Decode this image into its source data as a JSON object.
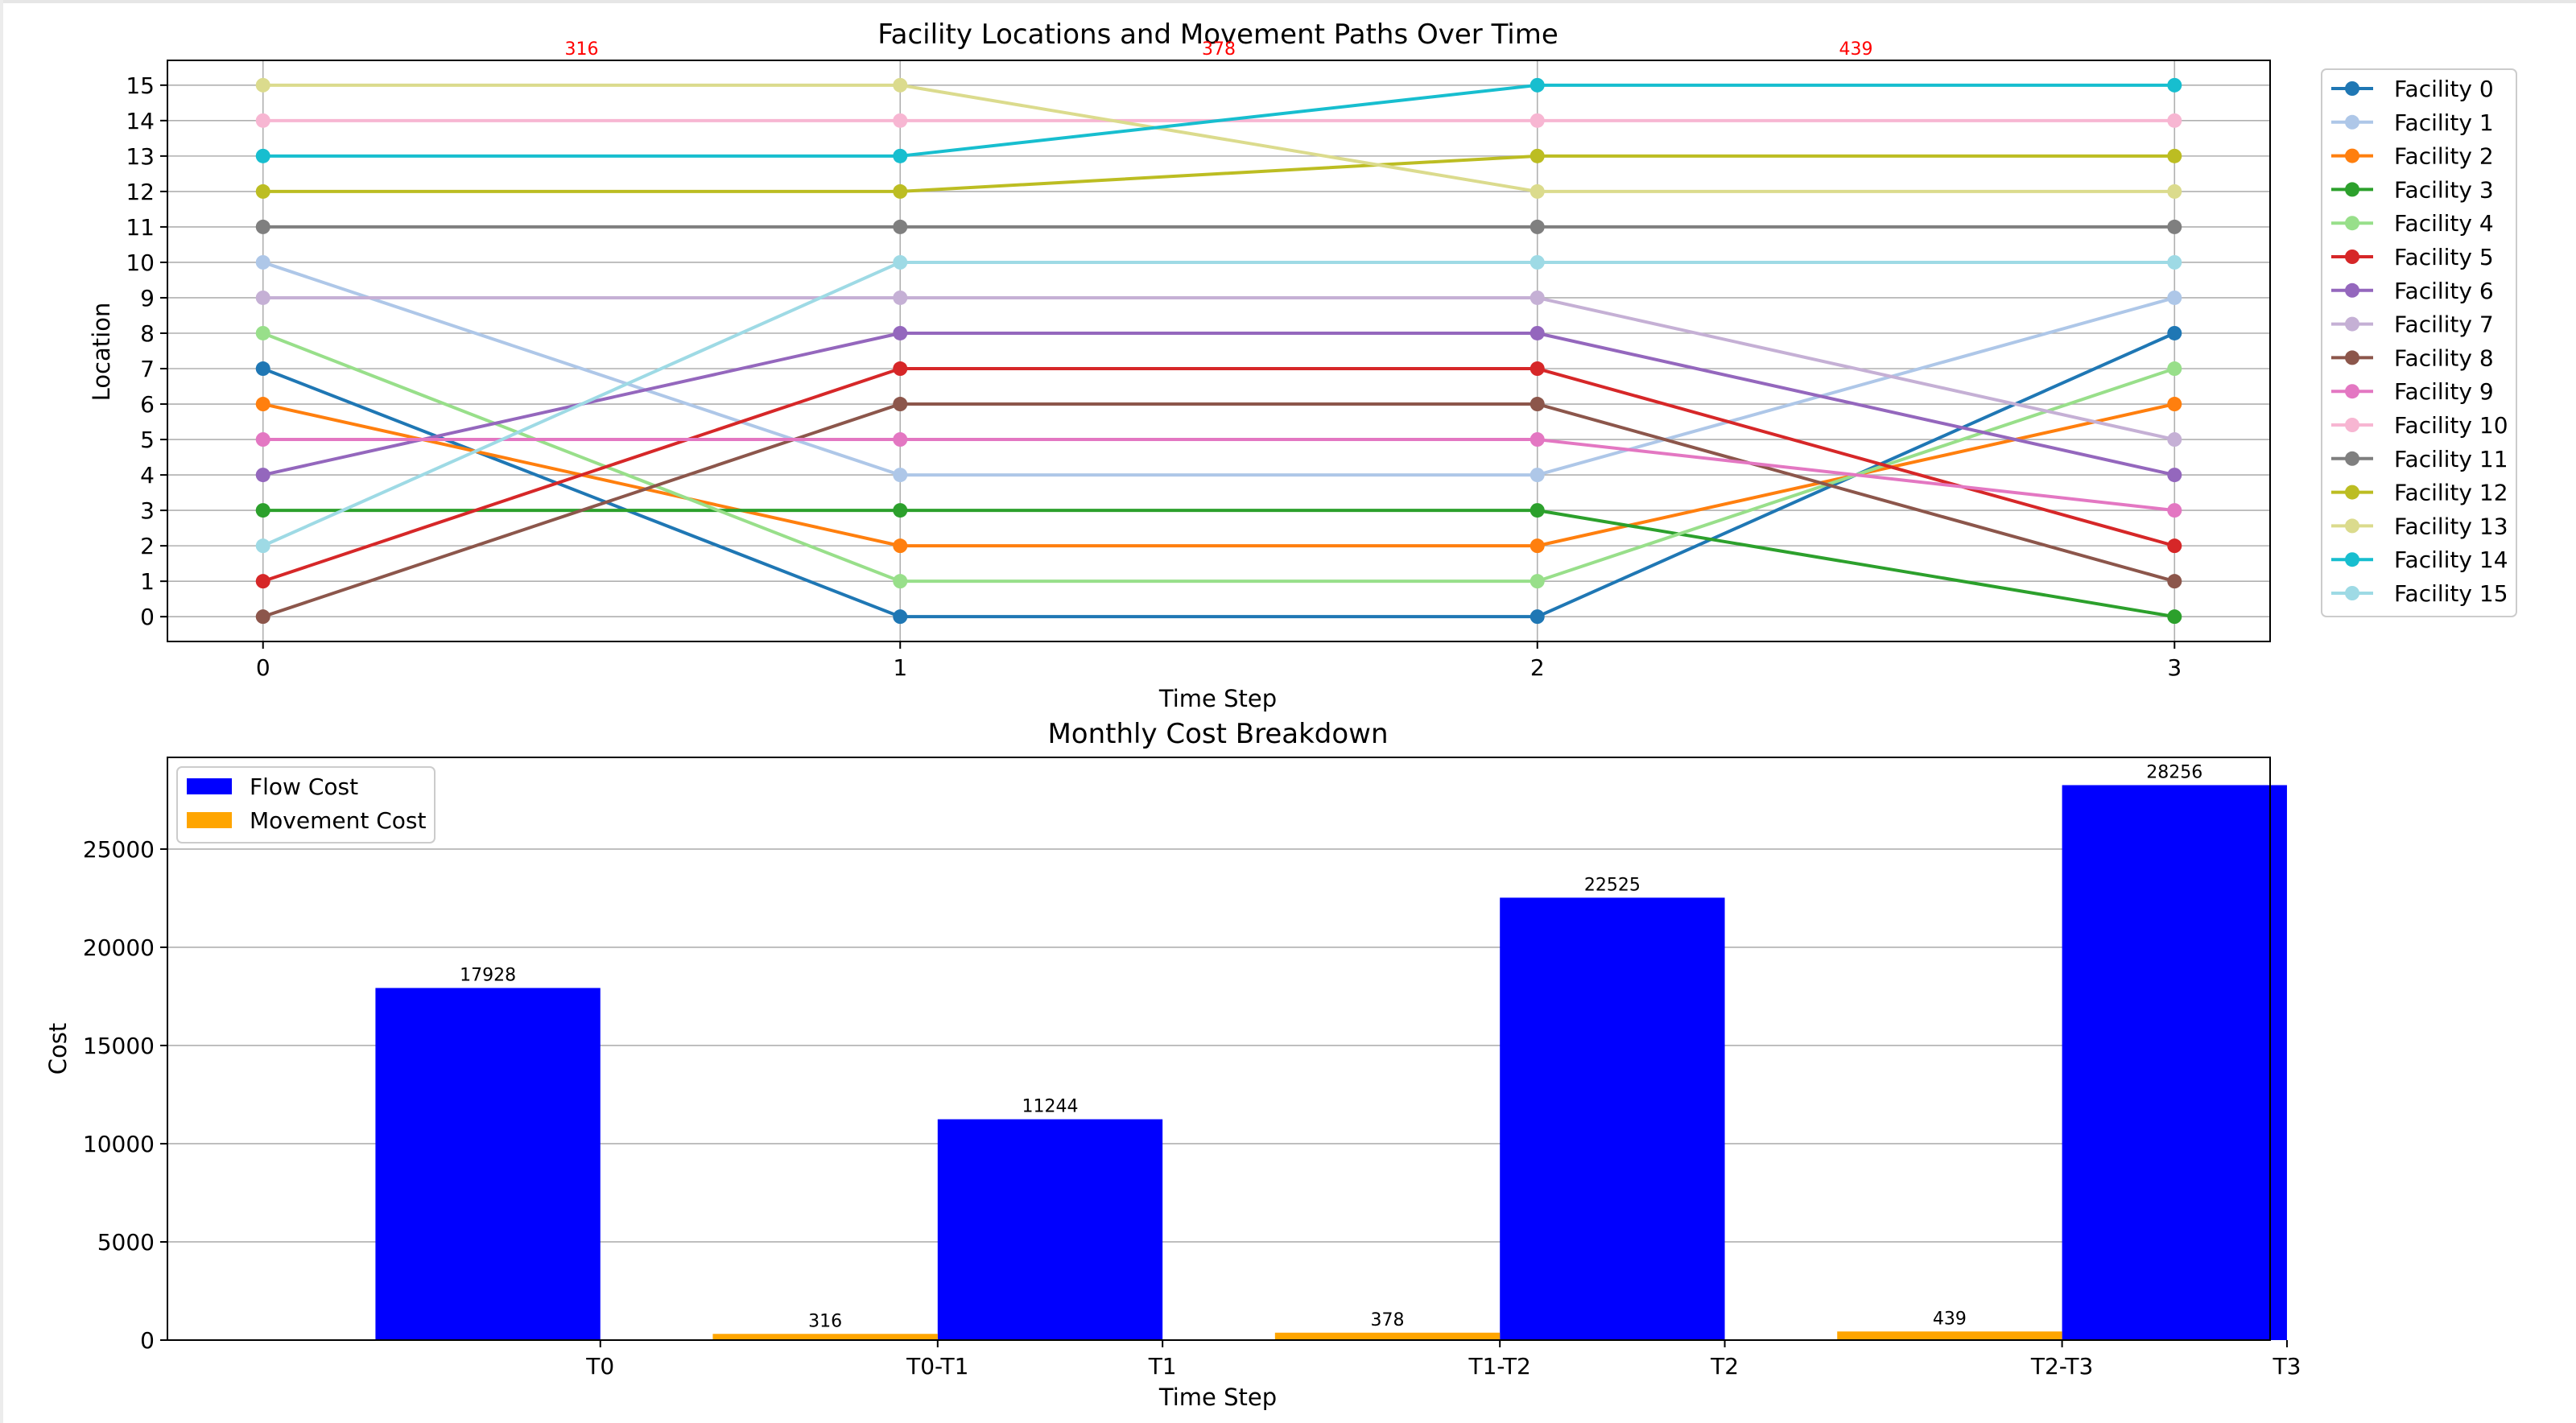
{
  "chart_data": [
    {
      "type": "line",
      "title": "Facility Locations and Movement Paths Over Time",
      "xlabel": "Time Step",
      "ylabel": "Location",
      "x": [
        0,
        1,
        2,
        3
      ],
      "xlim": [
        -0.15,
        3.15
      ],
      "ylim": [
        -0.7,
        15.7
      ],
      "yticks": [
        0,
        1,
        2,
        3,
        4,
        5,
        6,
        7,
        8,
        9,
        10,
        11,
        12,
        13,
        14,
        15
      ],
      "grid": true,
      "legend_position": "outside-right",
      "series": [
        {
          "name": "Facility 0",
          "color": "#1f77b4",
          "values": [
            7,
            0,
            0,
            8
          ]
        },
        {
          "name": "Facility 1",
          "color": "#aec7e8",
          "values": [
            10,
            4,
            4,
            9
          ]
        },
        {
          "name": "Facility 2",
          "color": "#ff7f0e",
          "values": [
            6,
            2,
            2,
            6
          ]
        },
        {
          "name": "Facility 3",
          "color": "#2ca02c",
          "values": [
            3,
            3,
            3,
            0
          ]
        },
        {
          "name": "Facility 4",
          "color": "#98df8a",
          "values": [
            8,
            1,
            1,
            7
          ]
        },
        {
          "name": "Facility 5",
          "color": "#d62728",
          "values": [
            1,
            7,
            7,
            2
          ]
        },
        {
          "name": "Facility 6",
          "color": "#9467bd",
          "values": [
            4,
            8,
            8,
            4
          ]
        },
        {
          "name": "Facility 7",
          "color": "#c5b0d5",
          "values": [
            9,
            9,
            9,
            5
          ]
        },
        {
          "name": "Facility 8",
          "color": "#8c564b",
          "values": [
            0,
            6,
            6,
            1
          ]
        },
        {
          "name": "Facility 9",
          "color": "#e377c2",
          "values": [
            5,
            5,
            5,
            3
          ]
        },
        {
          "name": "Facility 10",
          "color": "#f7b6d2",
          "values": [
            14,
            14,
            14,
            14
          ]
        },
        {
          "name": "Facility 11",
          "color": "#7f7f7f",
          "values": [
            11,
            11,
            11,
            11
          ]
        },
        {
          "name": "Facility 12",
          "color": "#bcbd22",
          "values": [
            12,
            12,
            13,
            13
          ]
        },
        {
          "name": "Facility 13",
          "color": "#dbdb8d",
          "values": [
            15,
            15,
            12,
            12
          ]
        },
        {
          "name": "Facility 14",
          "color": "#17becf",
          "values": [
            13,
            13,
            15,
            15
          ]
        },
        {
          "name": "Facility 15",
          "color": "#9edae5",
          "values": [
            2,
            10,
            10,
            10
          ]
        }
      ],
      "annotations": [
        {
          "x": 0.5,
          "text": "316",
          "color": "#ff0000"
        },
        {
          "x": 1.5,
          "text": "378",
          "color": "#ff0000"
        },
        {
          "x": 2.5,
          "text": "439",
          "color": "#ff0000"
        }
      ]
    },
    {
      "type": "bar",
      "title": "Monthly Cost Breakdown",
      "xlabel": "Time Step",
      "ylabel": "Cost",
      "categories": [
        "T0",
        "T0-T1",
        "T1",
        "T1-T2",
        "T2",
        "T2-T3",
        "T3"
      ],
      "xlim": [
        -0.57,
        3.17
      ],
      "ylim": [
        0,
        29669
      ],
      "yticks": [
        0,
        5000,
        10000,
        15000,
        20000,
        25000
      ],
      "grid": true,
      "legend_position": "upper-left",
      "series": [
        {
          "name": "Flow Cost",
          "color": "#0000ff",
          "bars": [
            {
              "label": "T0",
              "x": 0.0,
              "value": 17928
            },
            {
              "label": "T1",
              "x": 1.0,
              "value": 11244
            },
            {
              "label": "T2",
              "x": 2.0,
              "value": 22525
            },
            {
              "label": "T3",
              "x": 3.0,
              "value": 28256
            }
          ]
        },
        {
          "name": "Movement Cost",
          "color": "#ffa500",
          "bars": [
            {
              "label": "T0-T1",
              "x": 0.6,
              "value": 316
            },
            {
              "label": "T1-T2",
              "x": 1.6,
              "value": 378
            },
            {
              "label": "T2-T3",
              "x": 2.6,
              "value": 439
            }
          ]
        }
      ],
      "bar_width": 0.4
    }
  ]
}
